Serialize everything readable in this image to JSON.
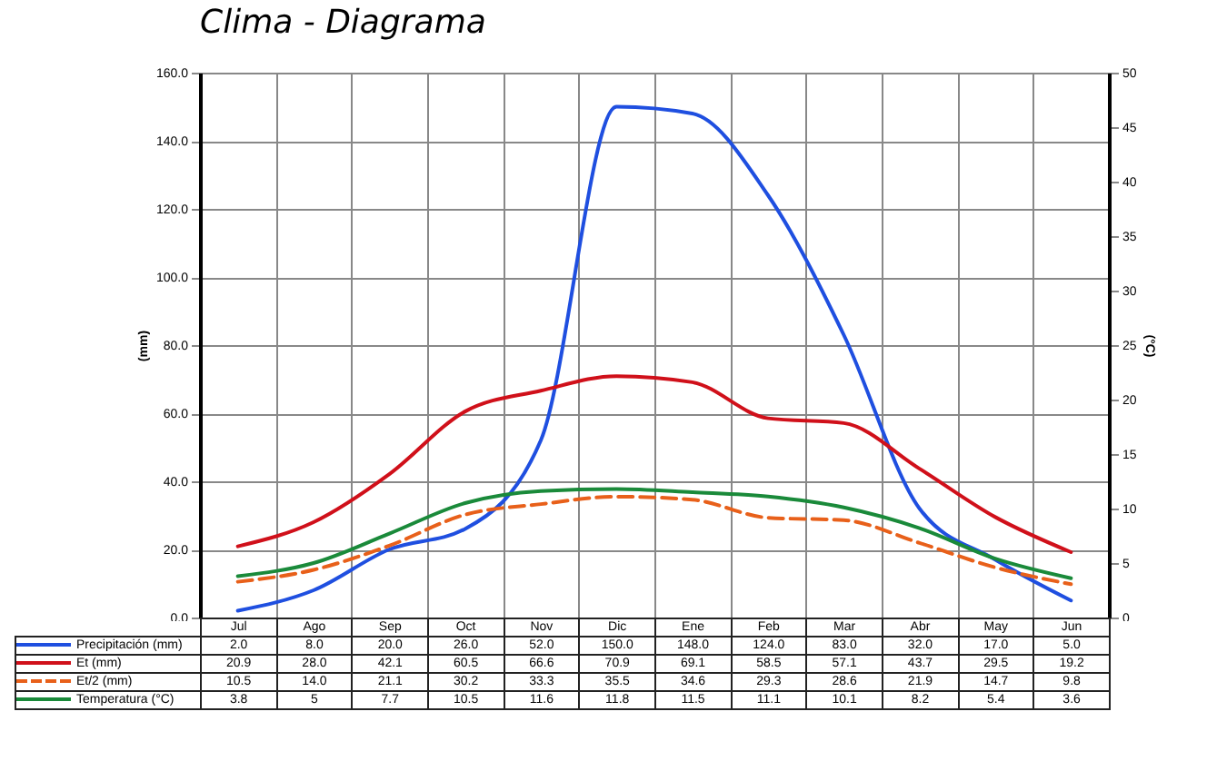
{
  "chart_data": {
    "type": "line",
    "title": "Clima - Diagrama",
    "ylabel": "(mm)",
    "y2label": "(°C)",
    "categories": [
      "Jul",
      "Ago",
      "Sep",
      "Oct",
      "Nov",
      "Dic",
      "Ene",
      "Feb",
      "Mar",
      "Abr",
      "May",
      "Jun"
    ],
    "series": [
      {
        "name": "Precipitación (mm)",
        "color": "#1f4fe0",
        "line_style": "solid",
        "values": [
          2,
          8,
          20,
          26,
          52,
          150,
          148,
          124,
          83,
          32,
          17,
          5
        ],
        "value_labels": [
          "2.0",
          "8.0",
          "20.0",
          "26.0",
          "52.0",
          "150.0",
          "148.0",
          "124.0",
          "83.0",
          "32.0",
          "17.0",
          "5.0"
        ]
      },
      {
        "name": "Et (mm)",
        "color": "#d0101a",
        "line_style": "solid",
        "values": [
          20.9,
          28,
          42.1,
          60.5,
          66.6,
          70.9,
          69.1,
          58.5,
          57.1,
          43.7,
          29.5,
          19.2
        ],
        "value_labels": [
          "20.9",
          "28.0",
          "42.1",
          "60.5",
          "66.6",
          "70.9",
          "69.1",
          "58.5",
          "57.1",
          "43.7",
          "29.5",
          "19.2"
        ]
      },
      {
        "name": "Et/2 (mm)",
        "color": "#e8601a",
        "line_style": "dashed",
        "values": [
          10.5,
          14,
          21.1,
          30.2,
          33.3,
          35.5,
          34.6,
          29.3,
          28.6,
          21.9,
          14.7,
          9.8
        ],
        "value_labels": [
          "10.5",
          "14.0",
          "21.1",
          "30.2",
          "33.3",
          "35.5",
          "34.6",
          "29.3",
          "28.6",
          "21.9",
          "14.7",
          "9.8"
        ]
      },
      {
        "name": "Temperatura (°C)",
        "color": "#1a8a3a",
        "line_style": "solid",
        "axis": "y2",
        "values": [
          3.8,
          5,
          7.7,
          10.5,
          11.6,
          11.8,
          11.5,
          11.1,
          10.1,
          8.2,
          5.4,
          3.6
        ],
        "value_labels": [
          "3.8",
          "5",
          "7.7",
          "10.5",
          "11.6",
          "11.8",
          "11.5",
          "11.1",
          "10.1",
          "8.2",
          "5.4",
          "3.6"
        ]
      }
    ],
    "ylim": [
      0,
      160
    ],
    "yticks": [
      {
        "value": 0,
        "label": "0.0"
      },
      {
        "value": 20,
        "label": "20.0"
      },
      {
        "value": 40,
        "label": "40.0"
      },
      {
        "value": 60,
        "label": "60.0"
      },
      {
        "value": 80,
        "label": "80.0"
      },
      {
        "value": 100,
        "label": "100.0"
      },
      {
        "value": 120,
        "label": "120.0"
      },
      {
        "value": 140,
        "label": "140.0"
      },
      {
        "value": 160,
        "label": "160.0"
      }
    ],
    "y2lim": [
      0,
      50
    ],
    "y2ticks": [
      0,
      5,
      10,
      15,
      20,
      25,
      30,
      35,
      40,
      45,
      50
    ],
    "grid": true,
    "legend": "bottom",
    "marker": "none"
  }
}
